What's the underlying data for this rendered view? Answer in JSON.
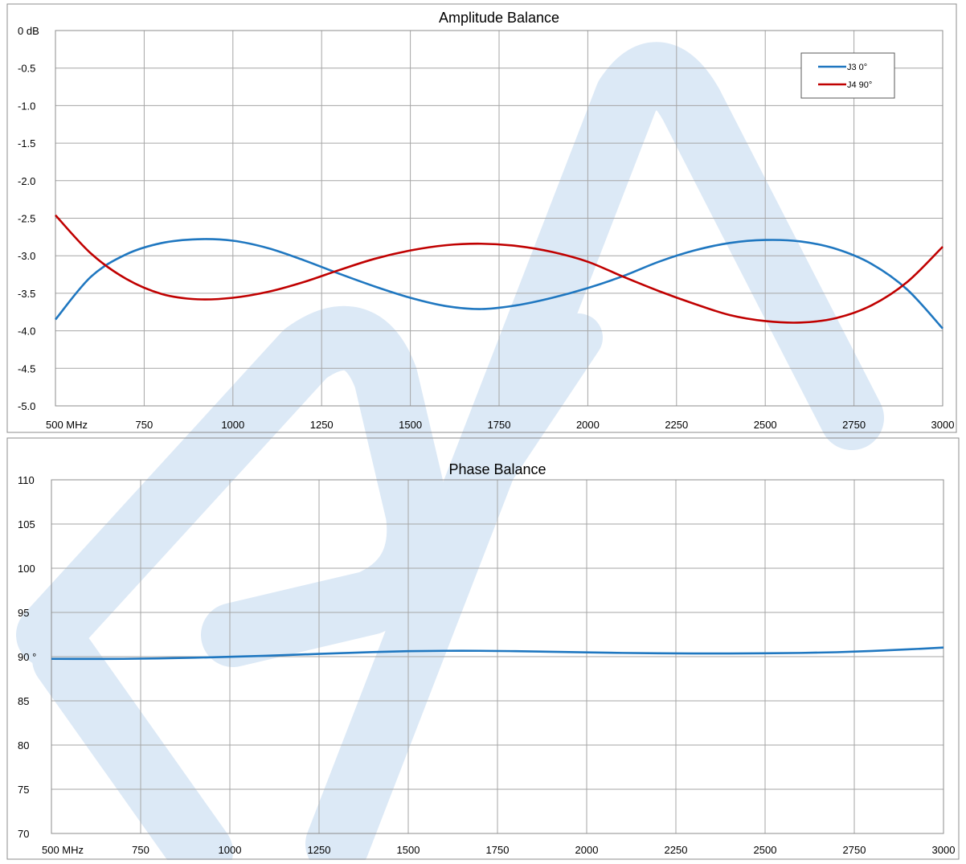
{
  "colors": {
    "grid": "#a6a6a6",
    "frame": "#8c8c8c",
    "series_blue": "#1f77c0",
    "series_red": "#c00000",
    "watermark": "#dce9f6"
  },
  "chart_data": [
    {
      "type": "line",
      "title": "Amplitude Balance",
      "xlabel": "",
      "ylabel": "",
      "xlim": [
        500,
        3000
      ],
      "ylim": [
        -5.0,
        0
      ],
      "grid": true,
      "legend_position": "top-right",
      "x_ticks": [
        500,
        750,
        1000,
        1250,
        1500,
        1750,
        2000,
        2250,
        2500,
        2750,
        3000
      ],
      "x_tick_labels": [
        "500 MHz",
        "750",
        "1000",
        "1250",
        "1500",
        "1750",
        "2000",
        "2250",
        "2500",
        "2750",
        "3000"
      ],
      "y_ticks": [
        0,
        -0.5,
        -1.0,
        -1.5,
        -2.0,
        -2.5,
        -3.0,
        -3.5,
        -4.0,
        -4.5,
        -5.0
      ],
      "y_tick_labels": [
        "0 dB",
        "-0.5",
        "-1.0",
        "-1.5",
        "-2.0",
        "-2.5",
        "-3.0",
        "-3.5",
        "-4.0",
        "-4.5",
        "-5.0"
      ],
      "series": [
        {
          "name": "J3 0°",
          "color": "#1f77c0",
          "x": [
            500,
            600,
            700,
            800,
            900,
            1000,
            1100,
            1200,
            1300,
            1400,
            1500,
            1600,
            1700,
            1800,
            1900,
            2000,
            2100,
            2200,
            2300,
            2400,
            2500,
            2600,
            2700,
            2800,
            2900,
            3000
          ],
          "y": [
            -3.85,
            -3.28,
            -2.98,
            -2.83,
            -2.78,
            -2.8,
            -2.9,
            -3.06,
            -3.24,
            -3.41,
            -3.56,
            -3.67,
            -3.71,
            -3.66,
            -3.56,
            -3.43,
            -3.27,
            -3.08,
            -2.93,
            -2.83,
            -2.79,
            -2.81,
            -2.91,
            -3.11,
            -3.45,
            -3.97
          ]
        },
        {
          "name": "J4 90°",
          "color": "#c00000",
          "x": [
            500,
            600,
            700,
            800,
            900,
            1000,
            1100,
            1200,
            1300,
            1400,
            1500,
            1600,
            1700,
            1800,
            1900,
            2000,
            2100,
            2200,
            2300,
            2400,
            2500,
            2600,
            2700,
            2800,
            2900,
            3000
          ],
          "y": [
            -2.46,
            -2.97,
            -3.31,
            -3.51,
            -3.58,
            -3.56,
            -3.48,
            -3.35,
            -3.19,
            -3.04,
            -2.93,
            -2.86,
            -2.84,
            -2.87,
            -2.95,
            -3.08,
            -3.28,
            -3.47,
            -3.64,
            -3.79,
            -3.87,
            -3.89,
            -3.83,
            -3.66,
            -3.35,
            -2.88
          ]
        }
      ]
    },
    {
      "type": "line",
      "title": "Phase Balance",
      "xlabel": "",
      "ylabel": "",
      "xlim": [
        500,
        3000
      ],
      "ylim": [
        70,
        110
      ],
      "grid": true,
      "x_ticks": [
        500,
        750,
        1000,
        1250,
        1500,
        1750,
        2000,
        2250,
        2500,
        2750,
        3000
      ],
      "x_tick_labels": [
        "500 MHz",
        "750",
        "1000",
        "1250",
        "1500",
        "1750",
        "2000",
        "2250",
        "2500",
        "2750",
        "3000"
      ],
      "y_ticks": [
        110,
        105,
        100,
        95,
        90,
        85,
        80,
        75,
        70
      ],
      "y_tick_labels": [
        "110",
        "105",
        "100",
        "95",
        "90 °",
        "85",
        "80",
        "75",
        "70"
      ],
      "series": [
        {
          "color": "#1f77c0",
          "x": [
            500,
            600,
            700,
            800,
            900,
            1000,
            1100,
            1200,
            1300,
            1400,
            1500,
            1600,
            1700,
            1800,
            1900,
            2000,
            2100,
            2200,
            2300,
            2400,
            2500,
            2600,
            2700,
            2800,
            2900,
            3000
          ],
          "y": [
            89.75,
            89.74,
            89.75,
            89.8,
            89.88,
            89.98,
            90.1,
            90.24,
            90.38,
            90.52,
            90.62,
            90.66,
            90.66,
            90.62,
            90.55,
            90.48,
            90.42,
            90.38,
            90.36,
            90.36,
            90.38,
            90.42,
            90.5,
            90.64,
            90.82,
            91.03
          ]
        }
      ]
    }
  ]
}
